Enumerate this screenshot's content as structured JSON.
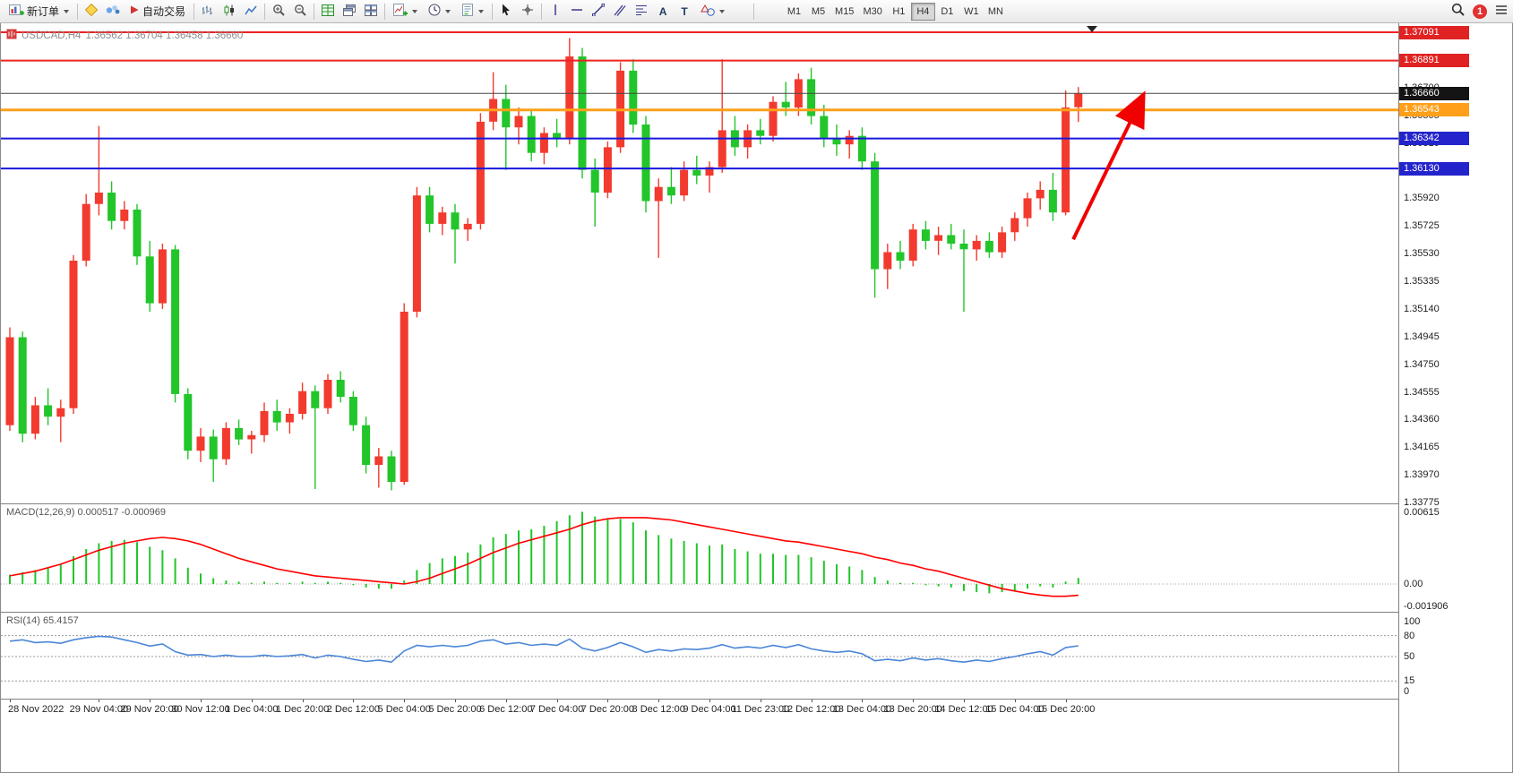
{
  "toolbar": {
    "new_order_label": "新订单",
    "auto_trading_label": "自动交易",
    "text_tool_glyph": "A",
    "label_tool_glyph": "T",
    "timeframes": [
      "M1",
      "M5",
      "M15",
      "M30",
      "H1",
      "H4",
      "D1",
      "W1",
      "MN"
    ],
    "active_timeframe": "H4",
    "notification_count": "1"
  },
  "chart": {
    "symbol_title": "USDCAD,H4",
    "ohlc_text": "1.36562 1.36704 1.36458 1.36660",
    "macd_label": "MACD(12,26,9) 0.000517 -0.000969",
    "rsi_label": "RSI(14) 65.4157"
  },
  "chart_data": {
    "type": "candlestick",
    "symbol": "USDCAD",
    "timeframe": "H4",
    "current_ohlc": {
      "open": 1.36562,
      "high": 1.36704,
      "low": 1.36458,
      "close": 1.3666
    },
    "ylim": [
      1.33775,
      1.37135
    ],
    "up_color": "#f23a2e",
    "down_color": "#22c52a",
    "candles": [
      [
        1.3432,
        1.3501,
        1.3428,
        1.3494
      ],
      [
        1.3494,
        1.3498,
        1.342,
        1.3426
      ],
      [
        1.3426,
        1.3452,
        1.3422,
        1.3446
      ],
      [
        1.3446,
        1.3458,
        1.3432,
        1.3438
      ],
      [
        1.3438,
        1.345,
        1.342,
        1.3444
      ],
      [
        1.3444,
        1.3552,
        1.344,
        1.3548
      ],
      [
        1.3548,
        1.3595,
        1.3544,
        1.3588
      ],
      [
        1.3588,
        1.3643,
        1.358,
        1.3596
      ],
      [
        1.3596,
        1.3604,
        1.357,
        1.3576
      ],
      [
        1.3576,
        1.359,
        1.357,
        1.3584
      ],
      [
        1.3584,
        1.3588,
        1.3545,
        1.3551
      ],
      [
        1.3551,
        1.3562,
        1.3512,
        1.3518
      ],
      [
        1.3518,
        1.356,
        1.3514,
        1.3556
      ],
      [
        1.3556,
        1.3559,
        1.3448,
        1.3454
      ],
      [
        1.3454,
        1.3458,
        1.3408,
        1.3414
      ],
      [
        1.3414,
        1.343,
        1.3406,
        1.3424
      ],
      [
        1.3424,
        1.3429,
        1.3392,
        1.3408
      ],
      [
        1.3408,
        1.3434,
        1.3404,
        1.343
      ],
      [
        1.343,
        1.3436,
        1.3418,
        1.3422
      ],
      [
        1.3422,
        1.3428,
        1.3412,
        1.3425
      ],
      [
        1.3425,
        1.3448,
        1.342,
        1.3442
      ],
      [
        1.3442,
        1.345,
        1.3428,
        1.3434
      ],
      [
        1.3434,
        1.3444,
        1.3426,
        1.344
      ],
      [
        1.344,
        1.3462,
        1.3436,
        1.3456
      ],
      [
        1.3456,
        1.346,
        1.3387,
        1.3444
      ],
      [
        1.3444,
        1.3468,
        1.344,
        1.3464
      ],
      [
        1.3464,
        1.347,
        1.3448,
        1.3452
      ],
      [
        1.3452,
        1.3456,
        1.3428,
        1.3432
      ],
      [
        1.3432,
        1.3438,
        1.3398,
        1.3404
      ],
      [
        1.3404,
        1.3416,
        1.3388,
        1.341
      ],
      [
        1.341,
        1.3414,
        1.3386,
        1.3392
      ],
      [
        1.3392,
        1.3518,
        1.339,
        1.3512
      ],
      [
        1.3512,
        1.36,
        1.3508,
        1.3594
      ],
      [
        1.3594,
        1.36,
        1.3568,
        1.3574
      ],
      [
        1.3574,
        1.3586,
        1.3566,
        1.3582
      ],
      [
        1.3582,
        1.3588,
        1.3546,
        1.357
      ],
      [
        1.357,
        1.3578,
        1.3562,
        1.3574
      ],
      [
        1.3574,
        1.3652,
        1.357,
        1.3646
      ],
      [
        1.3646,
        1.3681,
        1.364,
        1.3662
      ],
      [
        1.3662,
        1.3672,
        1.3612,
        1.3642
      ],
      [
        1.3642,
        1.3656,
        1.363,
        1.365
      ],
      [
        1.365,
        1.3655,
        1.3618,
        1.3624
      ],
      [
        1.3624,
        1.3642,
        1.3616,
        1.3638
      ],
      [
        1.3638,
        1.3648,
        1.3628,
        1.3634
      ],
      [
        1.3634,
        1.3705,
        1.363,
        1.3692
      ],
      [
        1.3692,
        1.3698,
        1.3606,
        1.3612
      ],
      [
        1.3612,
        1.362,
        1.3572,
        1.3596
      ],
      [
        1.3596,
        1.3632,
        1.3592,
        1.3628
      ],
      [
        1.3628,
        1.3688,
        1.3624,
        1.3682
      ],
      [
        1.3682,
        1.369,
        1.3638,
        1.3644
      ],
      [
        1.3644,
        1.365,
        1.3582,
        1.359
      ],
      [
        1.359,
        1.3606,
        1.355,
        1.36
      ],
      [
        1.36,
        1.3614,
        1.3588,
        1.3594
      ],
      [
        1.3594,
        1.3618,
        1.359,
        1.3612
      ],
      [
        1.3612,
        1.3622,
        1.3602,
        1.3608
      ],
      [
        1.3608,
        1.3618,
        1.3596,
        1.3614
      ],
      [
        1.3614,
        1.369,
        1.361,
        1.364
      ],
      [
        1.364,
        1.365,
        1.3622,
        1.3628
      ],
      [
        1.3628,
        1.3644,
        1.362,
        1.364
      ],
      [
        1.364,
        1.3648,
        1.363,
        1.3636
      ],
      [
        1.3636,
        1.3664,
        1.3632,
        1.366
      ],
      [
        1.366,
        1.3674,
        1.365,
        1.3656
      ],
      [
        1.3656,
        1.368,
        1.365,
        1.3676
      ],
      [
        1.3676,
        1.3684,
        1.3644,
        1.365
      ],
      [
        1.365,
        1.3658,
        1.3628,
        1.3634
      ],
      [
        1.3634,
        1.3644,
        1.3622,
        1.363
      ],
      [
        1.363,
        1.364,
        1.362,
        1.3636
      ],
      [
        1.3636,
        1.3642,
        1.3612,
        1.3618
      ],
      [
        1.3618,
        1.3624,
        1.3522,
        1.3542
      ],
      [
        1.3542,
        1.356,
        1.3528,
        1.3554
      ],
      [
        1.3554,
        1.3562,
        1.3542,
        1.3548
      ],
      [
        1.3548,
        1.3574,
        1.3544,
        1.357
      ],
      [
        1.357,
        1.3576,
        1.3556,
        1.3562
      ],
      [
        1.3562,
        1.3572,
        1.3552,
        1.3566
      ],
      [
        1.3566,
        1.3574,
        1.3556,
        1.356
      ],
      [
        1.356,
        1.357,
        1.3512,
        1.3556
      ],
      [
        1.3556,
        1.3566,
        1.3548,
        1.3562
      ],
      [
        1.3562,
        1.3568,
        1.355,
        1.3554
      ],
      [
        1.3554,
        1.3572,
        1.355,
        1.3568
      ],
      [
        1.3568,
        1.3582,
        1.3562,
        1.3578
      ],
      [
        1.3578,
        1.3596,
        1.3572,
        1.3592
      ],
      [
        1.3592,
        1.3604,
        1.3584,
        1.3598
      ],
      [
        1.3598,
        1.361,
        1.3576,
        1.3582
      ],
      [
        1.3582,
        1.3668,
        1.358,
        1.3656
      ],
      [
        1.36562,
        1.36704,
        1.36458,
        1.3666
      ]
    ],
    "levels": [
      {
        "label": "1.37091",
        "price": 1.37091,
        "color": "#ee2222",
        "width": 2,
        "box": "#e02222"
      },
      {
        "label": "1.36891",
        "price": 1.36891,
        "color": "#ee2222",
        "width": 2,
        "box": "#e02222"
      },
      {
        "label": "1.36660",
        "price": 1.3666,
        "color": "#474747",
        "width": 1,
        "box": "#141414"
      },
      {
        "label": "1.36543",
        "price": 1.36543,
        "color": "#ff9f1a",
        "width": 3,
        "box": "#ff9f1a"
      },
      {
        "label": "1.36342",
        "price": 1.36342,
        "color": "#1818dd",
        "width": 2,
        "box": "#2424cc"
      },
      {
        "label": "1.36130",
        "price": 1.3613,
        "color": "#1818dd",
        "width": 2,
        "box": "#2424cc"
      }
    ],
    "price_ticks": [
      "1.37090",
      "1.36895",
      "1.36700",
      "1.36505",
      "1.36310",
      "1.36115",
      "1.35920",
      "1.35725",
      "1.35530",
      "1.35335",
      "1.35140",
      "1.34945",
      "1.34750",
      "1.34555",
      "1.34360",
      "1.34165",
      "1.33970",
      "1.33775"
    ],
    "time_labels": [
      {
        "index": 0,
        "text": "28 Nov 2022"
      },
      {
        "index": 7,
        "text": "29 Nov 04:00"
      },
      {
        "index": 11,
        "text": "29 Nov 20:00"
      },
      {
        "index": 15,
        "text": "30 Nov 12:00"
      },
      {
        "index": 19,
        "text": "1 Dec 04:00"
      },
      {
        "index": 23,
        "text": "1 Dec 20:00"
      },
      {
        "index": 27,
        "text": "2 Dec 12:00"
      },
      {
        "index": 31,
        "text": "5 Dec 04:00"
      },
      {
        "index": 35,
        "text": "5 Dec 20:00"
      },
      {
        "index": 39,
        "text": "6 Dec 12:00"
      },
      {
        "index": 43,
        "text": "7 Dec 04:00"
      },
      {
        "index": 47,
        "text": "7 Dec 20:00"
      },
      {
        "index": 51,
        "text": "8 Dec 12:00"
      },
      {
        "index": 55,
        "text": "9 Dec 04:00"
      },
      {
        "index": 59,
        "text": "11 Dec 23:00"
      },
      {
        "index": 63,
        "text": "12 Dec 12:00"
      },
      {
        "index": 67,
        "text": "13 Dec 04:00"
      },
      {
        "index": 71,
        "text": "13 Dec 20:00"
      },
      {
        "index": 75,
        "text": "14 Dec 12:00"
      },
      {
        "index": 79,
        "text": "15 Dec 04:00"
      },
      {
        "index": 83,
        "text": "15 Dec 20:00"
      }
    ],
    "arrow_annotation": {
      "from_index": 83.6,
      "from_price": 1.3563,
      "to_index": 88.9,
      "to_price": 1.3661,
      "color": "#f10000"
    },
    "macd": {
      "name": "MACD",
      "params": "12,26,9",
      "main_value": 0.000517,
      "signal_value": -0.000969,
      "hist_color": "#22c52a",
      "signal_color": "#ff0000",
      "scale": [
        {
          "text": "0.00615",
          "value": 0.00615
        },
        {
          "text": "0.00",
          "value": 0
        },
        {
          "text": "-0.001906",
          "value": -0.001906
        }
      ],
      "histogram": [
        0.0008,
        0.001,
        0.0012,
        0.0014,
        0.0017,
        0.0024,
        0.003,
        0.0035,
        0.0037,
        0.0038,
        0.0036,
        0.0032,
        0.0029,
        0.0022,
        0.0014,
        0.0009,
        0.0005,
        0.0003,
        0.0002,
        0.0001,
        0.0002,
        0.0001,
        0.0001,
        0.0002,
        0.0001,
        0.0002,
        0.0001,
        -0.0001,
        -0.0003,
        -0.0004,
        -0.0004,
        0.0003,
        0.0012,
        0.0018,
        0.0022,
        0.0024,
        0.0027,
        0.0034,
        0.004,
        0.0043,
        0.0046,
        0.0047,
        0.005,
        0.0054,
        0.0059,
        0.0062,
        0.0058,
        0.0056,
        0.0056,
        0.0053,
        0.0046,
        0.0042,
        0.0039,
        0.0037,
        0.0035,
        0.0033,
        0.0034,
        0.003,
        0.0028,
        0.0026,
        0.0026,
        0.0025,
        0.0025,
        0.0023,
        0.002,
        0.0017,
        0.0015,
        0.0012,
        0.0006,
        0.0003,
        0.0001,
        0.0001,
        -0.0001,
        -0.0002,
        -0.0003,
        -0.0006,
        -0.0007,
        -0.0008,
        -0.0007,
        -0.0006,
        -0.0004,
        -0.0002,
        -0.0003,
        0.0002,
        0.000517
      ],
      "signal": [
        0.0007,
        0.0009,
        0.0011,
        0.0014,
        0.0017,
        0.0021,
        0.0025,
        0.0029,
        0.0032,
        0.0035,
        0.0037,
        0.0039,
        0.004,
        0.0039,
        0.0037,
        0.0034,
        0.003,
        0.0026,
        0.0022,
        0.0019,
        0.0016,
        0.0013,
        0.0011,
        0.0009,
        0.0007,
        0.0006,
        0.0005,
        0.0004,
        0.0003,
        0.0002,
        0.0001,
        0.0,
        0.0002,
        0.0005,
        0.0009,
        0.0013,
        0.0017,
        0.0022,
        0.0027,
        0.0031,
        0.0035,
        0.0038,
        0.0041,
        0.0044,
        0.0047,
        0.0051,
        0.0054,
        0.0056,
        0.0057,
        0.0057,
        0.0057,
        0.0056,
        0.0055,
        0.0053,
        0.0051,
        0.0049,
        0.0047,
        0.0045,
        0.0043,
        0.0041,
        0.0039,
        0.0037,
        0.0036,
        0.0034,
        0.0032,
        0.003,
        0.0028,
        0.0026,
        0.0023,
        0.0021,
        0.0018,
        0.0016,
        0.0013,
        0.0011,
        0.0008,
        0.0005,
        0.0002,
        -0.0001,
        -0.0004,
        -0.0006,
        -0.0008,
        -0.00095,
        -0.00105,
        -0.00105,
        -0.000969
      ]
    },
    "rsi": {
      "name": "RSI",
      "period": 14,
      "value": 65.4157,
      "line_color": "#4a86d8",
      "level_lines": [
        80,
        50,
        15
      ],
      "scale": [
        {
          "text": "100",
          "value": 100
        },
        {
          "text": "80",
          "value": 80
        },
        {
          "text": "50",
          "value": 50
        },
        {
          "text": "15",
          "value": 15
        },
        {
          "text": "0",
          "value": 0
        }
      ],
      "values": [
        72,
        74,
        70,
        71,
        69,
        74,
        77,
        79,
        78,
        74,
        70,
        65,
        68,
        57,
        52,
        53,
        50,
        52,
        50,
        50,
        52,
        50,
        51,
        53,
        48,
        52,
        50,
        46,
        43,
        45,
        42,
        58,
        66,
        64,
        66,
        64,
        66,
        72,
        74,
        68,
        70,
        66,
        68,
        66,
        75,
        62,
        58,
        63,
        70,
        64,
        56,
        60,
        58,
        61,
        60,
        62,
        67,
        62,
        64,
        62,
        66,
        63,
        67,
        61,
        58,
        56,
        58,
        54,
        44,
        46,
        44,
        48,
        45,
        47,
        44,
        42,
        45,
        43,
        47,
        50,
        54,
        57,
        52,
        63,
        65.4157
      ]
    }
  }
}
